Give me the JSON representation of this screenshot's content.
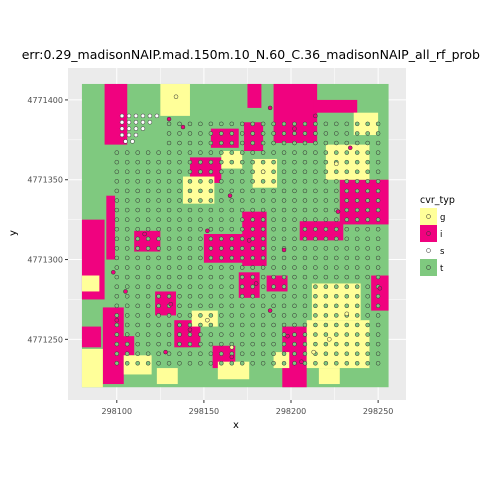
{
  "chart_data": {
    "type": "heatmap",
    "title": "err:0.29_madisonNAIP.mad.150m.10_N.60_C.36_madisonNAIP_all_rf_prob",
    "xlabel": "x",
    "ylabel": "y",
    "xlim": [
      298072,
      298266
    ],
    "ylim": [
      4771212,
      4771420
    ],
    "raster_extent": {
      "x": [
        298080,
        298256
      ],
      "y": [
        4771220,
        4771410
      ]
    },
    "x_ticks": [
      {
        "value": 298100,
        "label": "298100"
      },
      {
        "value": 298150,
        "label": "298150"
      },
      {
        "value": 298200,
        "label": "298200"
      },
      {
        "value": 298250,
        "label": "298250"
      }
    ],
    "y_ticks": [
      {
        "value": 4771250,
        "label": "4771250"
      },
      {
        "value": 4771300,
        "label": "4771300"
      },
      {
        "value": 4771350,
        "label": "4771350"
      },
      {
        "value": 4771400,
        "label": "4771400"
      }
    ],
    "grid": true,
    "panel_background": "#ebebeb",
    "legend": {
      "title": "cvr_typ",
      "position": "right",
      "entries": [
        {
          "key": "g",
          "label": "g",
          "color": "#ffff99"
        },
        {
          "key": "i",
          "label": "i",
          "color": "#f0027f"
        },
        {
          "key": "s",
          "label": "s",
          "color": "#ffffff"
        },
        {
          "key": "t",
          "label": "t",
          "color": "#7fc97f"
        }
      ]
    },
    "base_class": "t",
    "regions": [
      {
        "class": "i",
        "x": [
          298080,
          298093
        ],
        "y": [
          4771275,
          4771325
        ]
      },
      {
        "class": "i",
        "x": [
          298093,
          298106
        ],
        "y": [
          4771372,
          4771410
        ]
      },
      {
        "class": "i",
        "x": [
          298094,
          298099
        ],
        "y": [
          4771300,
          4771340
        ]
      },
      {
        "class": "g",
        "x": [
          298080,
          298090
        ],
        "y": [
          4771280,
          4771290
        ]
      },
      {
        "class": "i",
        "x": [
          298080,
          298091
        ],
        "y": [
          4771245,
          4771258
        ]
      },
      {
        "class": "i",
        "x": [
          298092,
          298104
        ],
        "y": [
          4771222,
          4771270
        ]
      },
      {
        "class": "i",
        "x": [
          298100,
          298110
        ],
        "y": [
          4771240,
          4771252
        ]
      },
      {
        "class": "i",
        "x": [
          298110,
          298125
        ],
        "y": [
          4771305,
          4771318
        ]
      },
      {
        "class": "i",
        "x": [
          298122,
          298134
        ],
        "y": [
          4771265,
          4771280
        ]
      },
      {
        "class": "i",
        "x": [
          298133,
          298148
        ],
        "y": [
          4771245,
          4771262
        ]
      },
      {
        "class": "i",
        "x": [
          298150,
          298183
        ],
        "y": [
          4771298,
          4771316
        ]
      },
      {
        "class": "i",
        "x": [
          298172,
          298186
        ],
        "y": [
          4771296,
          4771330
        ]
      },
      {
        "class": "i",
        "x": [
          298142,
          298160
        ],
        "y": [
          4771348,
          4771364
        ]
      },
      {
        "class": "i",
        "x": [
          298154,
          298170
        ],
        "y": [
          4771370,
          4771382
        ]
      },
      {
        "class": "i",
        "x": [
          298173,
          298184
        ],
        "y": [
          4771368,
          4771386
        ]
      },
      {
        "class": "i",
        "x": [
          298175,
          298183
        ],
        "y": [
          4771395,
          4771410
        ]
      },
      {
        "class": "i",
        "x": [
          298190,
          298215
        ],
        "y": [
          4771373,
          4771410
        ]
      },
      {
        "class": "i",
        "x": [
          298213,
          298238
        ],
        "y": [
          4771392,
          4771400
        ]
      },
      {
        "class": "i",
        "x": [
          298228,
          298256
        ],
        "y": [
          4771322,
          4771350
        ]
      },
      {
        "class": "i",
        "x": [
          298205,
          298230
        ],
        "y": [
          4771312,
          4771324
        ]
      },
      {
        "class": "i",
        "x": [
          298186,
          298198
        ],
        "y": [
          4771280,
          4771290
        ]
      },
      {
        "class": "i",
        "x": [
          298195,
          298209
        ],
        "y": [
          4771220,
          4771258
        ]
      },
      {
        "class": "i",
        "x": [
          298155,
          298168
        ],
        "y": [
          4771232,
          4771246
        ]
      },
      {
        "class": "i",
        "x": [
          298170,
          298182
        ],
        "y": [
          4771276,
          4771292
        ]
      },
      {
        "class": "i",
        "x": [
          298246,
          298256
        ],
        "y": [
          4771268,
          4771290
        ]
      },
      {
        "class": "g",
        "x": [
          298080,
          298092
        ],
        "y": [
          4771220,
          4771244
        ]
      },
      {
        "class": "g",
        "x": [
          298104,
          298120
        ],
        "y": [
          4771228,
          4771240
        ]
      },
      {
        "class": "g",
        "x": [
          298123,
          298135
        ],
        "y": [
          4771222,
          4771232
        ]
      },
      {
        "class": "g",
        "x": [
          298143,
          298158
        ],
        "y": [
          4771258,
          4771268
        ]
      },
      {
        "class": "g",
        "x": [
          298158,
          298176
        ],
        "y": [
          4771225,
          4771236
        ]
      },
      {
        "class": "g",
        "x": [
          298190,
          298199
        ],
        "y": [
          4771232,
          4771242
        ]
      },
      {
        "class": "g",
        "x": [
          298209,
          298245
        ],
        "y": [
          4771232,
          4771262
        ]
      },
      {
        "class": "g",
        "x": [
          298212,
          298240
        ],
        "y": [
          4771262,
          4771285
        ]
      },
      {
        "class": "g",
        "x": [
          298216,
          298228
        ],
        "y": [
          4771222,
          4771232
        ]
      },
      {
        "class": "g",
        "x": [
          298220,
          298245
        ],
        "y": [
          4771350,
          4771372
        ]
      },
      {
        "class": "g",
        "x": [
          298236,
          298250
        ],
        "y": [
          4771378,
          4771392
        ]
      },
      {
        "class": "g",
        "x": [
          298178,
          298192
        ],
        "y": [
          4771345,
          4771363
        ]
      },
      {
        "class": "g",
        "x": [
          298125,
          298142
        ],
        "y": [
          4771390,
          4771410
        ]
      },
      {
        "class": "g",
        "x": [
          298138,
          298156
        ],
        "y": [
          4771335,
          4771352
        ]
      },
      {
        "class": "g",
        "x": [
          298160,
          298172
        ],
        "y": [
          4771357,
          4771368
        ]
      }
    ],
    "points": [
      {
        "x": 298103,
        "y": 4771390,
        "class": "s"
      },
      {
        "x": 298107,
        "y": 4771390,
        "class": "s"
      },
      {
        "x": 298111,
        "y": 4771390,
        "class": "s"
      },
      {
        "x": 298115,
        "y": 4771390,
        "class": "s"
      },
      {
        "x": 298119,
        "y": 4771390,
        "class": "s"
      },
      {
        "x": 298123,
        "y": 4771390,
        "class": "s"
      },
      {
        "x": 298103,
        "y": 4771386,
        "class": "s"
      },
      {
        "x": 298107,
        "y": 4771386,
        "class": "s"
      },
      {
        "x": 298111,
        "y": 4771386,
        "class": "s"
      },
      {
        "x": 298115,
        "y": 4771386,
        "class": "s"
      },
      {
        "x": 298119,
        "y": 4771386,
        "class": "s"
      },
      {
        "x": 298103,
        "y": 4771382,
        "class": "s"
      },
      {
        "x": 298107,
        "y": 4771382,
        "class": "s"
      },
      {
        "x": 298111,
        "y": 4771382,
        "class": "s"
      },
      {
        "x": 298115,
        "y": 4771382,
        "class": "s"
      },
      {
        "x": 298103,
        "y": 4771378,
        "class": "s"
      },
      {
        "x": 298107,
        "y": 4771378,
        "class": "s"
      },
      {
        "x": 298111,
        "y": 4771378,
        "class": "s"
      },
      {
        "x": 298105,
        "y": 4771374,
        "class": "s"
      },
      {
        "x": 298109,
        "y": 4771374,
        "class": "s"
      },
      {
        "x": 298130,
        "y": 4771388,
        "class": "i"
      },
      {
        "x": 298138,
        "y": 4771383,
        "class": "i"
      },
      {
        "x": 298188,
        "y": 4771395,
        "class": "i"
      },
      {
        "x": 298202,
        "y": 4771382,
        "class": "i"
      },
      {
        "x": 298214,
        "y": 4771390,
        "class": "i"
      },
      {
        "x": 298234,
        "y": 4771370,
        "class": "i"
      },
      {
        "x": 298165,
        "y": 4771340,
        "class": "i"
      },
      {
        "x": 298152,
        "y": 4771318,
        "class": "i"
      },
      {
        "x": 298176,
        "y": 4771312,
        "class": "i"
      },
      {
        "x": 298196,
        "y": 4771306,
        "class": "i"
      },
      {
        "x": 298227,
        "y": 4771330,
        "class": "i"
      },
      {
        "x": 298098,
        "y": 4771292,
        "class": "i"
      },
      {
        "x": 298105,
        "y": 4771280,
        "class": "i"
      },
      {
        "x": 298100,
        "y": 4771262,
        "class": "i"
      },
      {
        "x": 298131,
        "y": 4771272,
        "class": "i"
      },
      {
        "x": 298142,
        "y": 4771256,
        "class": "i"
      },
      {
        "x": 298180,
        "y": 4771285,
        "class": "i"
      },
      {
        "x": 298188,
        "y": 4771268,
        "class": "i"
      },
      {
        "x": 298198,
        "y": 4771252,
        "class": "i"
      },
      {
        "x": 298206,
        "y": 4771236,
        "class": "i"
      },
      {
        "x": 298128,
        "y": 4771242,
        "class": "i"
      },
      {
        "x": 298166,
        "y": 4771239,
        "class": "i"
      },
      {
        "x": 298251,
        "y": 4771282,
        "class": "i"
      },
      {
        "x": 298116,
        "y": 4771316,
        "class": "i"
      },
      {
        "x": 298222,
        "y": 4771250,
        "class": "g"
      },
      {
        "x": 298232,
        "y": 4771266,
        "class": "g"
      },
      {
        "x": 298166,
        "y": 4771245,
        "class": "g"
      },
      {
        "x": 298152,
        "y": 4771262,
        "class": "g"
      },
      {
        "x": 298134,
        "y": 4771402,
        "class": "g"
      },
      {
        "x": 298226,
        "y": 4771360,
        "class": "g"
      },
      {
        "x": 298184,
        "y": 4771355,
        "class": "g"
      },
      {
        "x": 298213,
        "y": 4771242,
        "class": "g"
      }
    ],
    "point_grid": {
      "class": "t",
      "x_start": 298100,
      "x_end": 298250,
      "x_step": 6,
      "y_start": 4771235,
      "y_end": 4771390,
      "y_step": 6,
      "exclude": [
        {
          "x": [
            298098,
            298124
          ],
          "y": [
            4771372,
            4771392
          ]
        }
      ]
    }
  }
}
